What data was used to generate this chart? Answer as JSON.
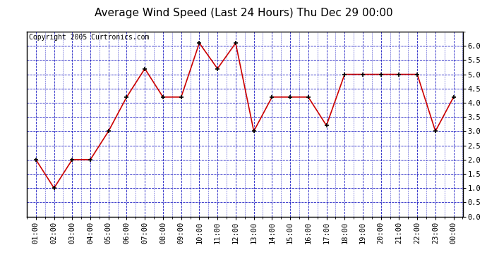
{
  "title": "Average Wind Speed (Last 24 Hours) Thu Dec 29 00:00",
  "copyright": "Copyright 2005 Curtronics.com",
  "x_labels": [
    "01:00",
    "02:00",
    "03:00",
    "04:00",
    "05:00",
    "06:00",
    "07:00",
    "08:00",
    "09:00",
    "10:00",
    "11:00",
    "12:00",
    "13:00",
    "14:00",
    "15:00",
    "16:00",
    "17:00",
    "18:00",
    "19:00",
    "20:00",
    "21:00",
    "22:00",
    "23:00",
    "00:00"
  ],
  "y_values": [
    2.0,
    1.0,
    2.0,
    2.0,
    3.0,
    4.2,
    5.2,
    4.2,
    4.2,
    6.1,
    5.2,
    6.1,
    3.0,
    4.2,
    4.2,
    4.2,
    3.2,
    5.0,
    5.0,
    5.0,
    5.0,
    5.0,
    3.0,
    4.2
  ],
  "line_color": "#cc0000",
  "marker_color": "#000000",
  "bg_color": "#ffffff",
  "grid_color": "#0000bb",
  "axis_color": "#000000",
  "title_color": "#000000",
  "ylim": [
    0.0,
    6.5
  ],
  "yticks": [
    0.0,
    0.5,
    1.0,
    1.5,
    2.0,
    2.5,
    3.0,
    3.5,
    4.0,
    4.5,
    5.0,
    5.5,
    6.0
  ],
  "title_fontsize": 11,
  "copyright_fontsize": 7,
  "tick_fontsize": 7.5
}
